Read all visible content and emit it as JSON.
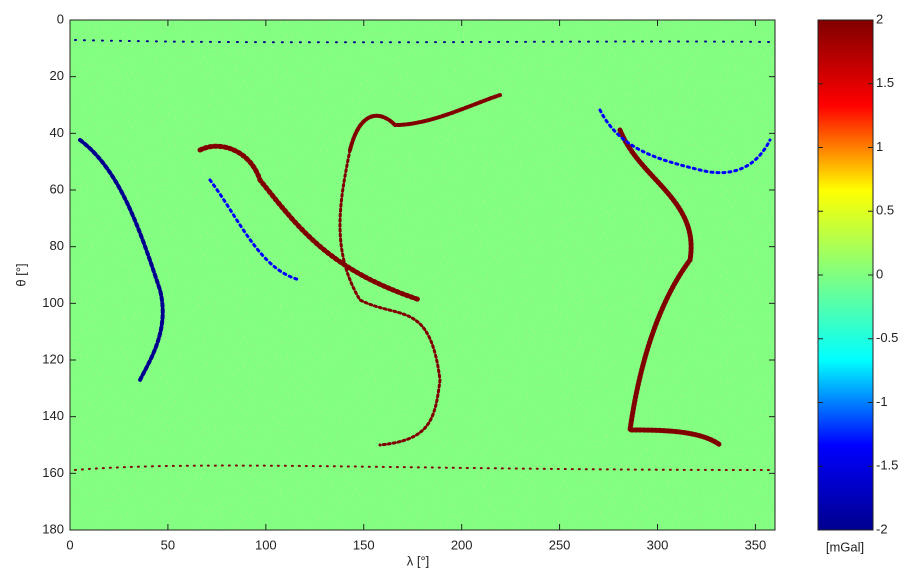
{
  "chart_data": {
    "type": "heatmap",
    "xlabel": "λ [°]",
    "ylabel": "θ [°]",
    "xlim": [
      0,
      360
    ],
    "xticks": [
      0,
      50,
      100,
      150,
      200,
      250,
      300,
      350
    ],
    "ylim": [
      0,
      180
    ],
    "yticks": [
      0,
      20,
      40,
      60,
      80,
      100,
      120,
      140,
      160,
      180
    ],
    "y_reversed": true,
    "colorbar": {
      "label": "[mGal]",
      "clim": [
        -2,
        2
      ],
      "ticks": [
        -2,
        -1.5,
        -1,
        -0.5,
        0,
        0.5,
        1,
        1.5,
        2
      ],
      "colormap": [
        "#00008f",
        "#0000ff",
        "#00ffff",
        "#80ff80",
        "#ffff00",
        "#ff0000",
        "#800000"
      ]
    }
  }
}
